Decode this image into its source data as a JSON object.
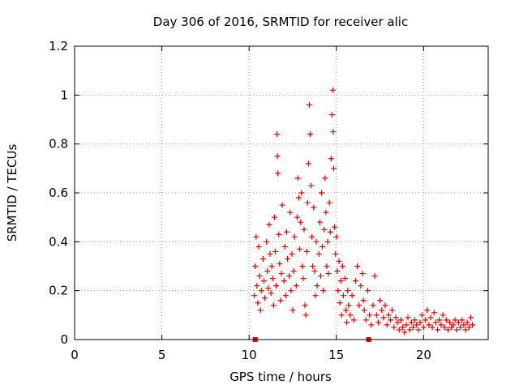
{
  "chart_data": {
    "type": "scatter",
    "title": "Day 306 of 2016, SRMTID for receiver alic",
    "xlabel": "GPS time / hours",
    "ylabel": "SRMTID / TECUs",
    "xlim": [
      0,
      23.7
    ],
    "ylim": [
      0,
      1.2
    ],
    "xticks": [
      0,
      5,
      10,
      15,
      20
    ],
    "xtick_labels": [
      "0",
      "5",
      "10",
      "15",
      "20"
    ],
    "yticks": [
      0,
      0.2,
      0.4,
      0.6,
      0.8,
      1.0,
      1.2
    ],
    "ytick_labels": [
      "0",
      "0.2",
      "0.4",
      "0.6",
      "0.8",
      "1",
      "1.2"
    ],
    "grid": true,
    "color": "#e00000",
    "marker": "+",
    "series": [
      {
        "name": "SRMTID",
        "points": [
          [
            10.3,
            0.18
          ],
          [
            10.35,
            0.3
          ],
          [
            10.4,
            0.42
          ],
          [
            10.45,
            0.22
          ],
          [
            10.5,
            0.15
          ],
          [
            10.55,
            0.38
          ],
          [
            10.6,
            0.26
          ],
          [
            10.65,
            0.12
          ],
          [
            10.7,
            0.2
          ],
          [
            10.8,
            0.33
          ],
          [
            10.85,
            0.24
          ],
          [
            10.9,
            0.17
          ],
          [
            11.0,
            0.4
          ],
          [
            11.05,
            0.28
          ],
          [
            11.1,
            0.21
          ],
          [
            11.15,
            0.47
          ],
          [
            11.2,
            0.35
          ],
          [
            11.25,
            0.19
          ],
          [
            11.3,
            0.3
          ],
          [
            11.35,
            0.25
          ],
          [
            11.4,
            0.14
          ],
          [
            11.45,
            0.5
          ],
          [
            11.5,
            0.36
          ],
          [
            11.55,
            0.22
          ],
          [
            11.6,
            0.84
          ],
          [
            11.62,
            0.75
          ],
          [
            11.65,
            0.68
          ],
          [
            11.7,
            0.43
          ],
          [
            11.75,
            0.31
          ],
          [
            11.8,
            0.16
          ],
          [
            11.85,
            0.27
          ],
          [
            11.9,
            0.55
          ],
          [
            12.0,
            0.24
          ],
          [
            12.05,
            0.38
          ],
          [
            12.1,
            0.18
          ],
          [
            12.15,
            0.44
          ],
          [
            12.2,
            0.33
          ],
          [
            12.3,
            0.26
          ],
          [
            12.35,
            0.52
          ],
          [
            12.4,
            0.2
          ],
          [
            12.45,
            0.35
          ],
          [
            12.5,
            0.12
          ],
          [
            12.55,
            0.28
          ],
          [
            12.6,
            0.42
          ],
          [
            12.7,
            0.22
          ],
          [
            12.75,
            0.5
          ],
          [
            12.8,
            0.66
          ],
          [
            12.85,
            0.58
          ],
          [
            12.9,
            0.37
          ],
          [
            12.95,
            0.48
          ],
          [
            13.0,
            0.6
          ],
          [
            13.05,
            0.3
          ],
          [
            13.1,
            0.25
          ],
          [
            13.15,
            0.45
          ],
          [
            13.2,
            0.14
          ],
          [
            13.25,
            0.1
          ],
          [
            13.3,
            0.36
          ],
          [
            13.35,
            0.56
          ],
          [
            13.4,
            0.72
          ],
          [
            13.45,
            0.96
          ],
          [
            13.5,
            0.84
          ],
          [
            13.55,
            0.63
          ],
          [
            13.6,
            0.42
          ],
          [
            13.65,
            0.3
          ],
          [
            13.7,
            0.54
          ],
          [
            13.75,
            0.28
          ],
          [
            13.8,
            0.18
          ],
          [
            13.85,
            0.4
          ],
          [
            13.9,
            0.22
          ],
          [
            14.0,
            0.35
          ],
          [
            14.05,
            0.48
          ],
          [
            14.1,
            0.26
          ],
          [
            14.15,
            0.6
          ],
          [
            14.2,
            0.38
          ],
          [
            14.25,
            0.2
          ],
          [
            14.3,
            0.45
          ],
          [
            14.35,
            0.66
          ],
          [
            14.4,
            0.52
          ],
          [
            14.45,
            0.3
          ],
          [
            14.5,
            0.4
          ],
          [
            14.55,
            0.27
          ],
          [
            14.6,
            0.56
          ],
          [
            14.65,
            0.44
          ],
          [
            14.7,
            0.74
          ],
          [
            14.75,
            0.92
          ],
          [
            14.8,
            1.02
          ],
          [
            14.82,
            0.85
          ],
          [
            14.85,
            0.7
          ],
          [
            14.9,
            0.46
          ],
          [
            14.95,
            0.35
          ],
          [
            15.0,
            0.42
          ],
          [
            15.05,
            0.28
          ],
          [
            15.1,
            0.2
          ],
          [
            15.15,
            0.32
          ],
          [
            15.2,
            0.15
          ],
          [
            15.25,
            0.24
          ],
          [
            15.3,
            0.1
          ],
          [
            15.35,
            0.3
          ],
          [
            15.4,
            0.18
          ],
          [
            15.5,
            0.25
          ],
          [
            15.55,
            0.12
          ],
          [
            15.6,
            0.07
          ],
          [
            15.65,
            0.2
          ],
          [
            15.7,
            0.14
          ],
          [
            15.8,
            0.1
          ],
          [
            15.9,
            0.18
          ],
          [
            16.0,
            0.08
          ],
          [
            16.1,
            0.24
          ],
          [
            16.2,
            0.3
          ],
          [
            16.3,
            0.14
          ],
          [
            16.4,
            0.22
          ],
          [
            16.5,
            0.27
          ],
          [
            16.55,
            0.16
          ],
          [
            16.6,
            0.12
          ],
          [
            16.7,
            0.08
          ],
          [
            16.8,
            0.2
          ],
          [
            16.9,
            0.1
          ],
          [
            17.0,
            0.06
          ],
          [
            17.1,
            0.14
          ],
          [
            17.2,
            0.26
          ],
          [
            17.3,
            0.1
          ],
          [
            17.4,
            0.07
          ],
          [
            17.5,
            0.16
          ],
          [
            17.6,
            0.12
          ],
          [
            17.7,
            0.09
          ],
          [
            17.8,
            0.14
          ],
          [
            17.9,
            0.06
          ],
          [
            18.0,
            0.1
          ],
          [
            18.1,
            0.08
          ],
          [
            18.2,
            0.12
          ],
          [
            18.3,
            0.05
          ],
          [
            18.4,
            0.09
          ],
          [
            18.5,
            0.07
          ],
          [
            18.6,
            0.04
          ],
          [
            18.7,
            0.08
          ],
          [
            18.8,
            0.05
          ],
          [
            18.9,
            0.03
          ],
          [
            19.0,
            0.06
          ],
          [
            19.1,
            0.09
          ],
          [
            19.2,
            0.04
          ],
          [
            19.3,
            0.07
          ],
          [
            19.4,
            0.05
          ],
          [
            19.5,
            0.08
          ],
          [
            19.6,
            0.06
          ],
          [
            19.7,
            0.04
          ],
          [
            19.8,
            0.07
          ],
          [
            19.9,
            0.1
          ],
          [
            20.0,
            0.05
          ],
          [
            20.1,
            0.08
          ],
          [
            20.2,
            0.12
          ],
          [
            20.3,
            0.06
          ],
          [
            20.4,
            0.09
          ],
          [
            20.5,
            0.05
          ],
          [
            20.6,
            0.11
          ],
          [
            20.7,
            0.07
          ],
          [
            20.8,
            0.04
          ],
          [
            20.9,
            0.08
          ],
          [
            21.0,
            0.06
          ],
          [
            21.1,
            0.1
          ],
          [
            21.2,
            0.05
          ],
          [
            21.3,
            0.08
          ],
          [
            21.4,
            0.04
          ],
          [
            21.5,
            0.07
          ],
          [
            21.6,
            0.05
          ],
          [
            21.7,
            0.06
          ],
          [
            21.8,
            0.08
          ],
          [
            21.9,
            0.04
          ],
          [
            22.0,
            0.07
          ],
          [
            22.1,
            0.05
          ],
          [
            22.2,
            0.08
          ],
          [
            22.3,
            0.06
          ],
          [
            22.4,
            0.04
          ],
          [
            22.5,
            0.07
          ],
          [
            22.6,
            0.05
          ],
          [
            22.7,
            0.09
          ],
          [
            22.8,
            0.06
          ]
        ]
      }
    ],
    "filled_markers": [
      {
        "x": 10.35,
        "y": 0.0
      },
      {
        "x": 16.85,
        "y": 0.0
      }
    ]
  }
}
